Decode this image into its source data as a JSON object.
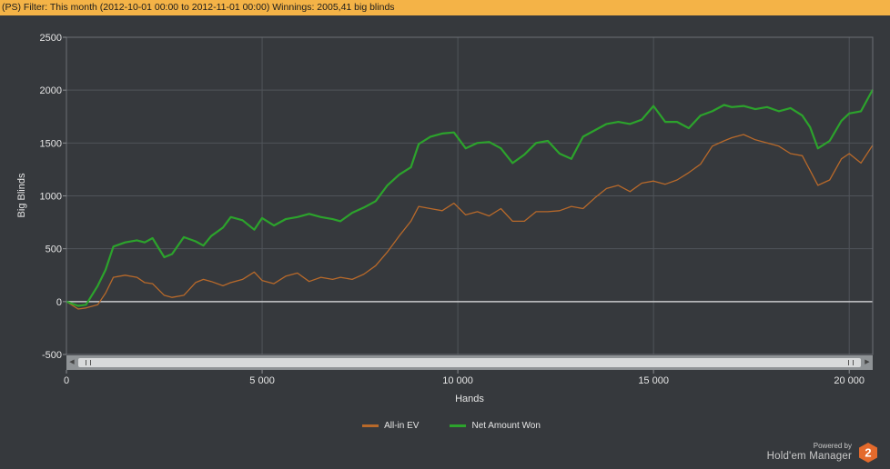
{
  "header": {
    "filter_text": "(PS) Filter: This month (2012-10-01 00:00 to 2012-11-01 00:00) Winnings: 2005,41 big blinds"
  },
  "chart_data": {
    "type": "line",
    "title": "",
    "xlabel": "Hands",
    "ylabel": "Big Blinds",
    "xlim": [
      0,
      20600
    ],
    "ylim": [
      -500,
      2500
    ],
    "x_ticks": [
      0,
      5000,
      10000,
      15000,
      20000
    ],
    "x_tick_labels": [
      "0",
      "5 000",
      "10 000",
      "15 000",
      "20 000"
    ],
    "y_ticks": [
      -500,
      0,
      500,
      1000,
      1500,
      2000,
      2500
    ],
    "y_tick_labels": [
      "-500",
      "0",
      "500",
      "1000",
      "1500",
      "2000",
      "2500"
    ],
    "grid": true,
    "legend_position": "bottom-center",
    "series": [
      {
        "name": "All-in EV",
        "color": "#b8692a",
        "x": [
          0,
          300,
          500,
          800,
          1000,
          1200,
          1500,
          1800,
          2000,
          2200,
          2500,
          2700,
          3000,
          3300,
          3500,
          3700,
          4000,
          4200,
          4500,
          4800,
          5000,
          5300,
          5600,
          5900,
          6200,
          6500,
          6800,
          7000,
          7300,
          7600,
          7900,
          8200,
          8500,
          8800,
          9000,
          9300,
          9600,
          9900,
          10200,
          10500,
          10800,
          11100,
          11400,
          11700,
          12000,
          12300,
          12600,
          12900,
          13200,
          13500,
          13800,
          14100,
          14400,
          14700,
          15000,
          15300,
          15600,
          15900,
          16200,
          16500,
          16800,
          17000,
          17300,
          17600,
          17900,
          18200,
          18500,
          18800,
          19000,
          19200,
          19500,
          19800,
          20000,
          20300,
          20600
        ],
        "values": [
          0,
          -70,
          -60,
          -30,
          80,
          230,
          250,
          230,
          180,
          170,
          60,
          40,
          60,
          180,
          210,
          190,
          150,
          180,
          210,
          280,
          200,
          170,
          240,
          270,
          190,
          230,
          210,
          230,
          210,
          260,
          340,
          470,
          620,
          760,
          900,
          880,
          860,
          930,
          820,
          850,
          810,
          880,
          760,
          760,
          850,
          850,
          860,
          900,
          880,
          980,
          1070,
          1100,
          1040,
          1120,
          1140,
          1110,
          1150,
          1220,
          1300,
          1470,
          1520,
          1550,
          1580,
          1530,
          1500,
          1470,
          1400,
          1380,
          1240,
          1100,
          1150,
          1350,
          1400,
          1310,
          1480
        ]
      },
      {
        "name": "Net Amount Won",
        "color": "#2ca32c",
        "x": [
          0,
          300,
          500,
          800,
          1000,
          1200,
          1500,
          1800,
          2000,
          2200,
          2500,
          2700,
          3000,
          3300,
          3500,
          3700,
          4000,
          4200,
          4500,
          4800,
          5000,
          5300,
          5600,
          5900,
          6200,
          6500,
          6800,
          7000,
          7300,
          7600,
          7900,
          8200,
          8500,
          8800,
          9000,
          9300,
          9600,
          9900,
          10200,
          10500,
          10800,
          11100,
          11400,
          11700,
          12000,
          12300,
          12600,
          12900,
          13200,
          13500,
          13800,
          14100,
          14400,
          14700,
          15000,
          15300,
          15600,
          15900,
          16200,
          16500,
          16800,
          17000,
          17300,
          17600,
          17900,
          18200,
          18500,
          18800,
          19000,
          19200,
          19500,
          19800,
          20000,
          20300,
          20600
        ],
        "values": [
          0,
          -40,
          -30,
          150,
          300,
          520,
          560,
          580,
          560,
          600,
          420,
          450,
          610,
          570,
          530,
          620,
          700,
          800,
          770,
          680,
          790,
          720,
          780,
          800,
          830,
          800,
          780,
          760,
          840,
          890,
          950,
          1100,
          1200,
          1270,
          1490,
          1560,
          1590,
          1600,
          1450,
          1500,
          1510,
          1450,
          1310,
          1390,
          1500,
          1520,
          1400,
          1350,
          1560,
          1620,
          1680,
          1700,
          1680,
          1720,
          1850,
          1700,
          1700,
          1640,
          1760,
          1800,
          1860,
          1840,
          1850,
          1820,
          1840,
          1800,
          1830,
          1760,
          1650,
          1450,
          1520,
          1710,
          1780,
          1800,
          2005
        ]
      }
    ]
  },
  "scrollbar": {
    "left_arrow": "◀",
    "right_arrow": "▶"
  },
  "brand": {
    "powered": "Powered by",
    "name": "Hold'em Manager",
    "logo_number": "2",
    "logo_color": "#e46a2c"
  }
}
